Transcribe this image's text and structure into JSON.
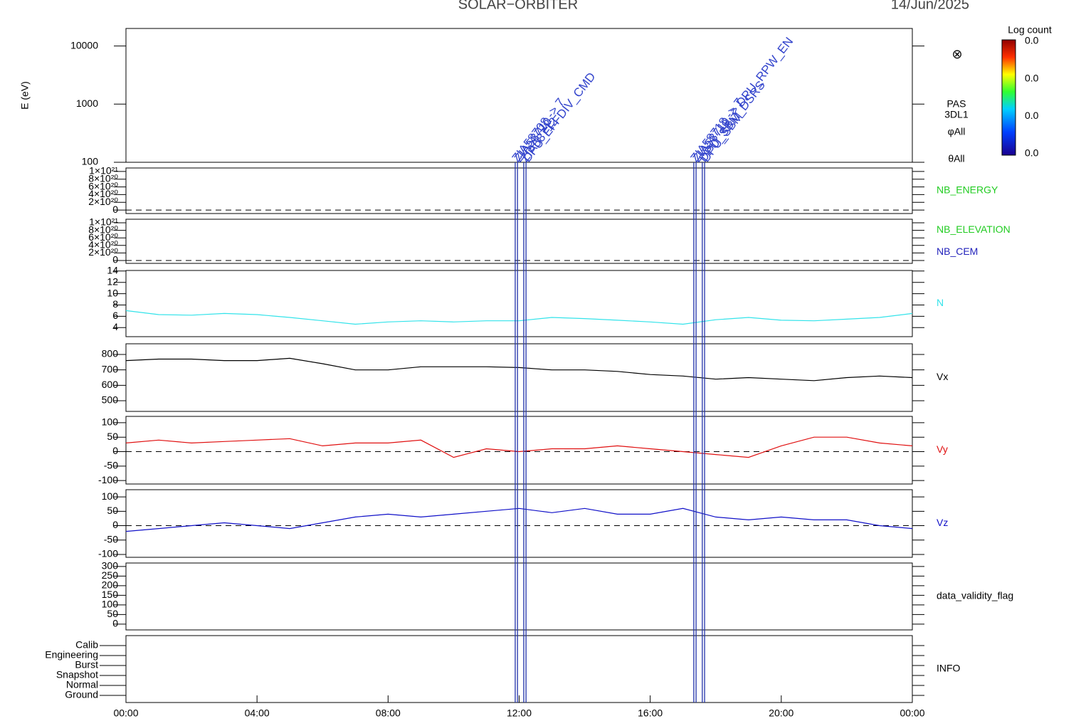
{
  "header": {
    "title": "SOLAR−ORBITER",
    "date": "14/Jun/2025"
  },
  "time_axis": {
    "xlim": [
      0,
      24
    ],
    "xticks": [
      {
        "value": 0,
        "label": "00:00"
      },
      {
        "value": 4,
        "label": "04:00"
      },
      {
        "value": 8,
        "label": "08:00"
      },
      {
        "value": 12,
        "label": "12:00"
      },
      {
        "value": 16,
        "label": "16:00"
      },
      {
        "value": 20,
        "label": "20:00"
      },
      {
        "value": 24,
        "label": "00:00"
      }
    ]
  },
  "events": [
    {
      "x": 11.88,
      "label": "ZIA58708 -> 7"
    },
    {
      "x": 11.95,
      "label": "ZIA58710"
    },
    {
      "x": 12.14,
      "label": "ZIA58712"
    },
    {
      "x": 12.21,
      "label": "DPU_EFFDIV_CMD"
    },
    {
      "x": 17.33,
      "label": "ZIA58718 -> 7"
    },
    {
      "x": 17.4,
      "label": "ZIA58719 -> DPU_RPW_EN"
    },
    {
      "x": 17.59,
      "label": "DPU_SBM_DSRS"
    },
    {
      "x": 17.66,
      "label": "DPU_SBM"
    }
  ],
  "colorbar": {
    "title": "Log count",
    "ticks": [
      "0.0",
      "0.0",
      "0.0",
      "0.0"
    ]
  },
  "chart_data": [
    {
      "type": "spectrogram",
      "y_label": "E (eV)",
      "log_scale": true,
      "ylim": [
        100,
        20000
      ],
      "yticks": [
        100,
        1000,
        10000
      ],
      "symbol": "⊗",
      "side_labels": [
        {
          "text": "PAS"
        },
        {
          "text": "3DL1"
        },
        {
          "text": "φAll"
        },
        {
          "text": "θAll"
        }
      ]
    },
    {
      "type": "empty",
      "ylim": [
        -9e+19,
        1.09e+21
      ],
      "dashed_zero": true,
      "yticks": [
        0,
        {
          "value": 2e+20,
          "label": "2×10²⁰"
        },
        {
          "value": 4e+20,
          "label": "4×10²⁰"
        },
        {
          "value": 6e+20,
          "label": "6×10²⁰"
        },
        {
          "value": 8e+20,
          "label": "8×10²⁰"
        },
        {
          "value": 1e+21,
          "label": "1×10²¹"
        }
      ],
      "side_labels": [
        {
          "text": "NB_ENERGY",
          "color": "#22cc22"
        }
      ]
    },
    {
      "type": "empty",
      "ylim": [
        -7.5e+19,
        1.094e+21
      ],
      "dashed_zero": true,
      "yticks": [
        0,
        {
          "value": 2e+20,
          "label": "2×10²⁰"
        },
        {
          "value": 4e+20,
          "label": "4×10²⁰"
        },
        {
          "value": 6e+20,
          "label": "6×10²⁰"
        },
        {
          "value": 8e+20,
          "label": "8×10²⁰"
        },
        {
          "value": 1e+21,
          "label": "1×10²¹"
        }
      ],
      "side_labels": [
        {
          "text": "NB_ELEVATION",
          "color": "#22cc22"
        },
        {
          "text": "NB_CEM",
          "color": "#2222bb"
        }
      ]
    },
    {
      "type": "line",
      "ylim": [
        2.4,
        14.1
      ],
      "yticks": [
        4,
        6,
        8,
        10,
        12,
        14
      ],
      "x": [
        0,
        1,
        2,
        3,
        4,
        5,
        6,
        7,
        8,
        9,
        10,
        11,
        12,
        13,
        14,
        15,
        16,
        17,
        18,
        19,
        20,
        21,
        22,
        23,
        24
      ],
      "series": [
        {
          "name": "N",
          "color": "#33e3ea",
          "values": [
            7,
            6.3,
            6.2,
            6.5,
            6.3,
            5.8,
            5.2,
            4.6,
            5,
            5.2,
            5,
            5.2,
            5.2,
            5.8,
            5.6,
            5.3,
            5,
            4.6,
            5.4,
            5.8,
            5.3,
            5.2,
            5.5,
            5.8,
            6.5
          ]
        }
      ]
    },
    {
      "type": "line",
      "ylim": [
        431,
        869
      ],
      "yticks": [
        500,
        600,
        700,
        800
      ],
      "x": [
        0,
        1,
        2,
        3,
        4,
        5,
        6,
        7,
        8,
        9,
        10,
        11,
        12,
        13,
        14,
        15,
        16,
        17,
        18,
        19,
        20,
        21,
        22,
        23,
        24
      ],
      "series": [
        {
          "name": "Vx",
          "color": "#000000",
          "values": [
            760,
            770,
            770,
            760,
            760,
            775,
            740,
            700,
            700,
            720,
            720,
            720,
            715,
            700,
            700,
            690,
            670,
            660,
            640,
            650,
            640,
            630,
            650,
            660,
            650
          ]
        }
      ]
    },
    {
      "type": "line",
      "ylim": [
        -112,
        122
      ],
      "yticks": [
        -100,
        -50,
        0,
        50,
        100
      ],
      "dashed_zero": true,
      "x": [
        0,
        1,
        2,
        3,
        4,
        5,
        6,
        7,
        8,
        9,
        10,
        11,
        12,
        13,
        14,
        15,
        16,
        17,
        18,
        19,
        20,
        21,
        22,
        23,
        24
      ],
      "series": [
        {
          "name": "Vy",
          "color": "#e01010",
          "values": [
            30,
            40,
            30,
            35,
            40,
            45,
            20,
            30,
            30,
            40,
            -20,
            10,
            0,
            10,
            10,
            20,
            10,
            0,
            -10,
            -20,
            20,
            50,
            50,
            30,
            20
          ]
        }
      ]
    },
    {
      "type": "line",
      "ylim": [
        -110,
        125
      ],
      "yticks": [
        -100,
        -50,
        0,
        50,
        100
      ],
      "dashed_zero": true,
      "x": [
        0,
        1,
        2,
        3,
        4,
        5,
        6,
        7,
        8,
        9,
        10,
        11,
        12,
        13,
        14,
        15,
        16,
        17,
        18,
        19,
        20,
        21,
        22,
        23,
        24
      ],
      "series": [
        {
          "name": "Vz",
          "color": "#1010c8",
          "values": [
            -20,
            -10,
            0,
            10,
            0,
            -10,
            10,
            30,
            40,
            30,
            40,
            50,
            60,
            45,
            60,
            40,
            40,
            60,
            30,
            20,
            30,
            20,
            20,
            0,
            -10
          ]
        }
      ]
    },
    {
      "type": "empty",
      "ylim": [
        -30,
        318
      ],
      "yticks": [
        0,
        50,
        100,
        150,
        200,
        250,
        300
      ],
      "side_labels": [
        {
          "text": "data_validity_flag"
        }
      ]
    },
    {
      "type": "category",
      "categories": [
        "Calib",
        "Engineering",
        "Burst",
        "Snapshot",
        "Normal",
        "Ground"
      ],
      "side_labels": [
        {
          "text": "INFO"
        }
      ]
    }
  ]
}
